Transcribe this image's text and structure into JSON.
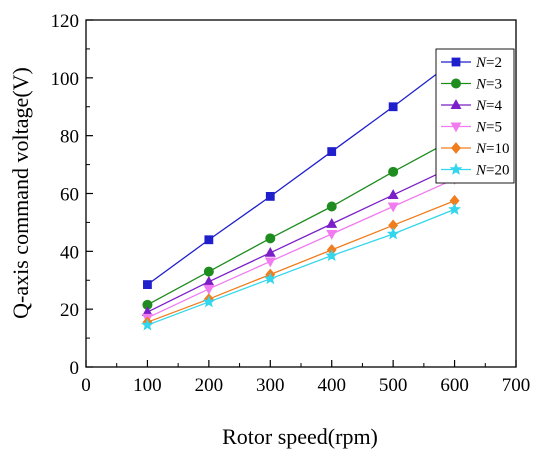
{
  "chart_data": {
    "type": "line",
    "title": "",
    "xlabel": "Rotor speed(rpm)",
    "ylabel": "Q-axis command voltage(V)",
    "xlim": [
      0,
      700
    ],
    "ylim": [
      0,
      120
    ],
    "xticks": [
      "0",
      "100",
      "200",
      "300",
      "400",
      "500",
      "600",
      "700"
    ],
    "yticks": [
      "0",
      "20",
      "40",
      "60",
      "80",
      "100",
      "120"
    ],
    "grid": false,
    "legend_position": "top-right",
    "x": [
      100,
      200,
      300,
      400,
      500,
      600
    ],
    "series": [
      {
        "name": "N=2",
        "name_italic": "N",
        "name_rest": "=2",
        "color": "#1f1fcc",
        "marker": "square",
        "values": [
          28.5,
          44,
          59,
          74.5,
          90,
          106
        ]
      },
      {
        "name": "N=3",
        "name_italic": "N",
        "name_rest": "=3",
        "color": "#1e8c1e",
        "marker": "circle",
        "values": [
          21.5,
          33,
          44.5,
          55.5,
          67.5,
          79
        ]
      },
      {
        "name": "N=4",
        "name_italic": "N",
        "name_rest": "=4",
        "color": "#7b1fc8",
        "marker": "triangle-up",
        "values": [
          19,
          29.5,
          39.5,
          49.5,
          59.5,
          69.5
        ]
      },
      {
        "name": "N=5",
        "name_italic": "N",
        "name_rest": "=5",
        "color": "#f07cf0",
        "marker": "triangle-down",
        "values": [
          17,
          27,
          36.5,
          46,
          55.5,
          65
        ]
      },
      {
        "name": "N=10",
        "name_italic": "N",
        "name_rest": "=10",
        "color": "#f07d1e",
        "marker": "diamond",
        "values": [
          15.5,
          23.5,
          32,
          40.5,
          49,
          57.5
        ]
      },
      {
        "name": "N=20",
        "name_italic": "N",
        "name_rest": "=20",
        "color": "#33d6ec",
        "marker": "star",
        "values": [
          14.5,
          22.5,
          30.5,
          38.5,
          46,
          54.5
        ]
      }
    ]
  }
}
